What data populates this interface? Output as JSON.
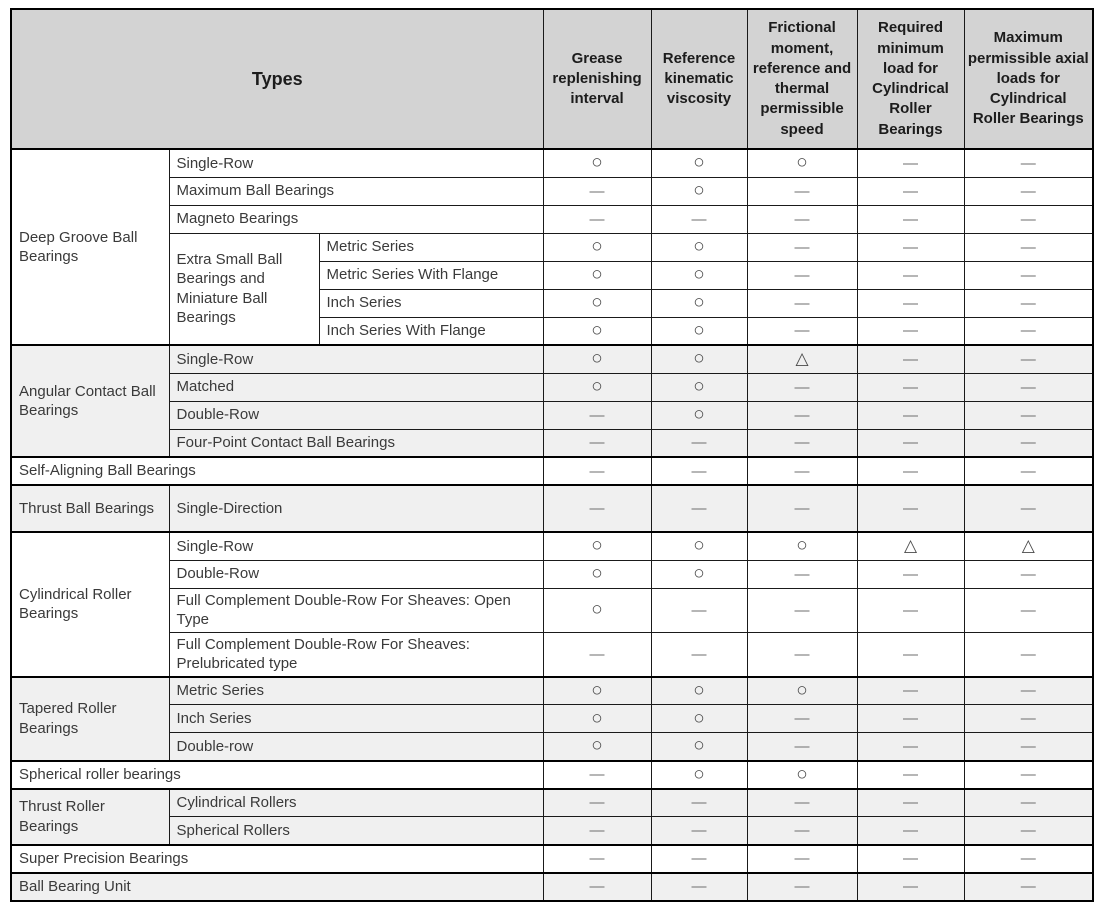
{
  "table": {
    "types_header": "Types",
    "columns": [
      "Grease replenishing interval",
      "Reference kinematic viscosity",
      "Frictional moment, reference and thermal permissible speed",
      "Required minimum load for Cylindrical Roller Bearings",
      "Maximum permissible axial loads for Cylindrical Roller Bearings"
    ],
    "symbols": {
      "circle": "○",
      "triangle": "△",
      "dash": "—"
    },
    "colors": {
      "header_bg": "#d3d3d3",
      "shaded_section_bg": "#f0f0f0",
      "border": "#000000",
      "text": "#3a3a3a"
    },
    "sections": [
      {
        "group": "Deep Groove Ball Bearings",
        "shaded": false,
        "rows": [
          {
            "cells": [
              {
                "t": "Deep Groove Ball Bearings",
                "rs": 7,
                "name": "group-label-cell"
              },
              {
                "t": "Single-Row",
                "cs": 2
              }
            ],
            "values": [
              "circle",
              "circle",
              "circle",
              "dash",
              "dash"
            ]
          },
          {
            "cells": [
              {
                "t": "Maximum Ball Bearings",
                "cs": 2
              }
            ],
            "values": [
              "dash",
              "circle",
              "dash",
              "dash",
              "dash"
            ]
          },
          {
            "cells": [
              {
                "t": "Magneto Bearings",
                "cs": 2
              }
            ],
            "values": [
              "dash",
              "dash",
              "dash",
              "dash",
              "dash"
            ]
          },
          {
            "cells": [
              {
                "t": "Extra Small Ball Bearings and Miniature Ball Bearings",
                "rs": 4,
                "name": "subgroup-label-cell"
              },
              {
                "t": "Metric Series"
              }
            ],
            "values": [
              "circle",
              "circle",
              "dash",
              "dash",
              "dash"
            ]
          },
          {
            "cells": [
              {
                "t": "Metric Series With Flange"
              }
            ],
            "values": [
              "circle",
              "circle",
              "dash",
              "dash",
              "dash"
            ]
          },
          {
            "cells": [
              {
                "t": "Inch Series"
              }
            ],
            "values": [
              "circle",
              "circle",
              "dash",
              "dash",
              "dash"
            ]
          },
          {
            "cells": [
              {
                "t": "Inch Series With Flange"
              }
            ],
            "values": [
              "circle",
              "circle",
              "dash",
              "dash",
              "dash"
            ]
          }
        ]
      },
      {
        "group": "Angular Contact Ball Bearings",
        "shaded": true,
        "rows": [
          {
            "cells": [
              {
                "t": "Angular Contact Ball Bearings",
                "rs": 4,
                "name": "group-label-cell"
              },
              {
                "t": "Single-Row",
                "cs": 2
              }
            ],
            "values": [
              "circle",
              "circle",
              "triangle",
              "dash",
              "dash"
            ]
          },
          {
            "cells": [
              {
                "t": "Matched",
                "cs": 2
              }
            ],
            "values": [
              "circle",
              "circle",
              "dash",
              "dash",
              "dash"
            ]
          },
          {
            "cells": [
              {
                "t": "Double-Row",
                "cs": 2
              }
            ],
            "values": [
              "dash",
              "circle",
              "dash",
              "dash",
              "dash"
            ]
          },
          {
            "cells": [
              {
                "t": "Four-Point Contact Ball Bearings",
                "cs": 2
              }
            ],
            "values": [
              "dash",
              "dash",
              "dash",
              "dash",
              "dash"
            ]
          }
        ]
      },
      {
        "group": "Self-Aligning Ball Bearings",
        "shaded": false,
        "rows": [
          {
            "cells": [
              {
                "t": "Self-Aligning Ball Bearings",
                "cs": 3,
                "name": "group-label-cell"
              }
            ],
            "values": [
              "dash",
              "dash",
              "dash",
              "dash",
              "dash"
            ]
          }
        ]
      },
      {
        "group": "Thrust Ball Bearings",
        "shaded": true,
        "rows": [
          {
            "tall": "thrust",
            "cells": [
              {
                "t": "Thrust Ball Bearings",
                "name": "group-label-cell"
              },
              {
                "t": "Single-Direction",
                "cs": 2
              }
            ],
            "values": [
              "dash",
              "dash",
              "dash",
              "dash",
              "dash"
            ]
          }
        ]
      },
      {
        "group": "Cylindrical Roller Bearings",
        "shaded": false,
        "rows": [
          {
            "cells": [
              {
                "t": "Cylindrical Roller Bearings",
                "rs": 4,
                "name": "group-label-cell"
              },
              {
                "t": "Single-Row",
                "cs": 2
              }
            ],
            "values": [
              "circle",
              "circle",
              "circle",
              "triangle",
              "triangle"
            ]
          },
          {
            "cells": [
              {
                "t": "Double-Row",
                "cs": 2
              }
            ],
            "values": [
              "circle",
              "circle",
              "dash",
              "dash",
              "dash"
            ]
          },
          {
            "tall": "two",
            "cells": [
              {
                "t": "Full Complement Double-Row For Sheaves: Open Type",
                "cs": 2
              }
            ],
            "values": [
              "circle",
              "dash",
              "dash",
              "dash",
              "dash"
            ]
          },
          {
            "tall": "two",
            "cells": [
              {
                "t": "Full Complement Double-Row For Sheaves: Prelubricated type",
                "cs": 2
              }
            ],
            "values": [
              "dash",
              "dash",
              "dash",
              "dash",
              "dash"
            ]
          }
        ]
      },
      {
        "group": "Tapered Roller Bearings",
        "shaded": true,
        "rows": [
          {
            "cells": [
              {
                "t": "Tapered Roller Bearings",
                "rs": 3,
                "name": "group-label-cell"
              },
              {
                "t": "Metric Series",
                "cs": 2
              }
            ],
            "values": [
              "circle",
              "circle",
              "circle",
              "dash",
              "dash"
            ]
          },
          {
            "cells": [
              {
                "t": "Inch Series",
                "cs": 2
              }
            ],
            "values": [
              "circle",
              "circle",
              "dash",
              "dash",
              "dash"
            ]
          },
          {
            "cells": [
              {
                "t": "Double-row",
                "cs": 2
              }
            ],
            "values": [
              "circle",
              "circle",
              "dash",
              "dash",
              "dash"
            ]
          }
        ]
      },
      {
        "group": "Spherical roller bearings",
        "shaded": false,
        "rows": [
          {
            "cells": [
              {
                "t": "Spherical roller bearings",
                "cs": 3,
                "name": "group-label-cell"
              }
            ],
            "values": [
              "dash",
              "circle",
              "circle",
              "dash",
              "dash"
            ]
          }
        ]
      },
      {
        "group": "Thrust Roller Bearings",
        "shaded": true,
        "rows": [
          {
            "cells": [
              {
                "t": "Thrust Roller Bearings",
                "rs": 2,
                "name": "group-label-cell"
              },
              {
                "t": "Cylindrical Rollers",
                "cs": 2
              }
            ],
            "values": [
              "dash",
              "dash",
              "dash",
              "dash",
              "dash"
            ]
          },
          {
            "cells": [
              {
                "t": "Spherical Rollers",
                "cs": 2
              }
            ],
            "values": [
              "dash",
              "dash",
              "dash",
              "dash",
              "dash"
            ]
          }
        ]
      },
      {
        "group": "Super Precision Bearings",
        "shaded": false,
        "rows": [
          {
            "cells": [
              {
                "t": "Super Precision Bearings",
                "cs": 3,
                "name": "group-label-cell"
              }
            ],
            "values": [
              "dash",
              "dash",
              "dash",
              "dash",
              "dash"
            ]
          }
        ]
      },
      {
        "group": "Ball Bearing Unit",
        "shaded": true,
        "rows": [
          {
            "cells": [
              {
                "t": "Ball Bearing Unit",
                "cs": 3,
                "name": "group-label-cell"
              }
            ],
            "values": [
              "dash",
              "dash",
              "dash",
              "dash",
              "dash"
            ]
          }
        ]
      }
    ]
  }
}
